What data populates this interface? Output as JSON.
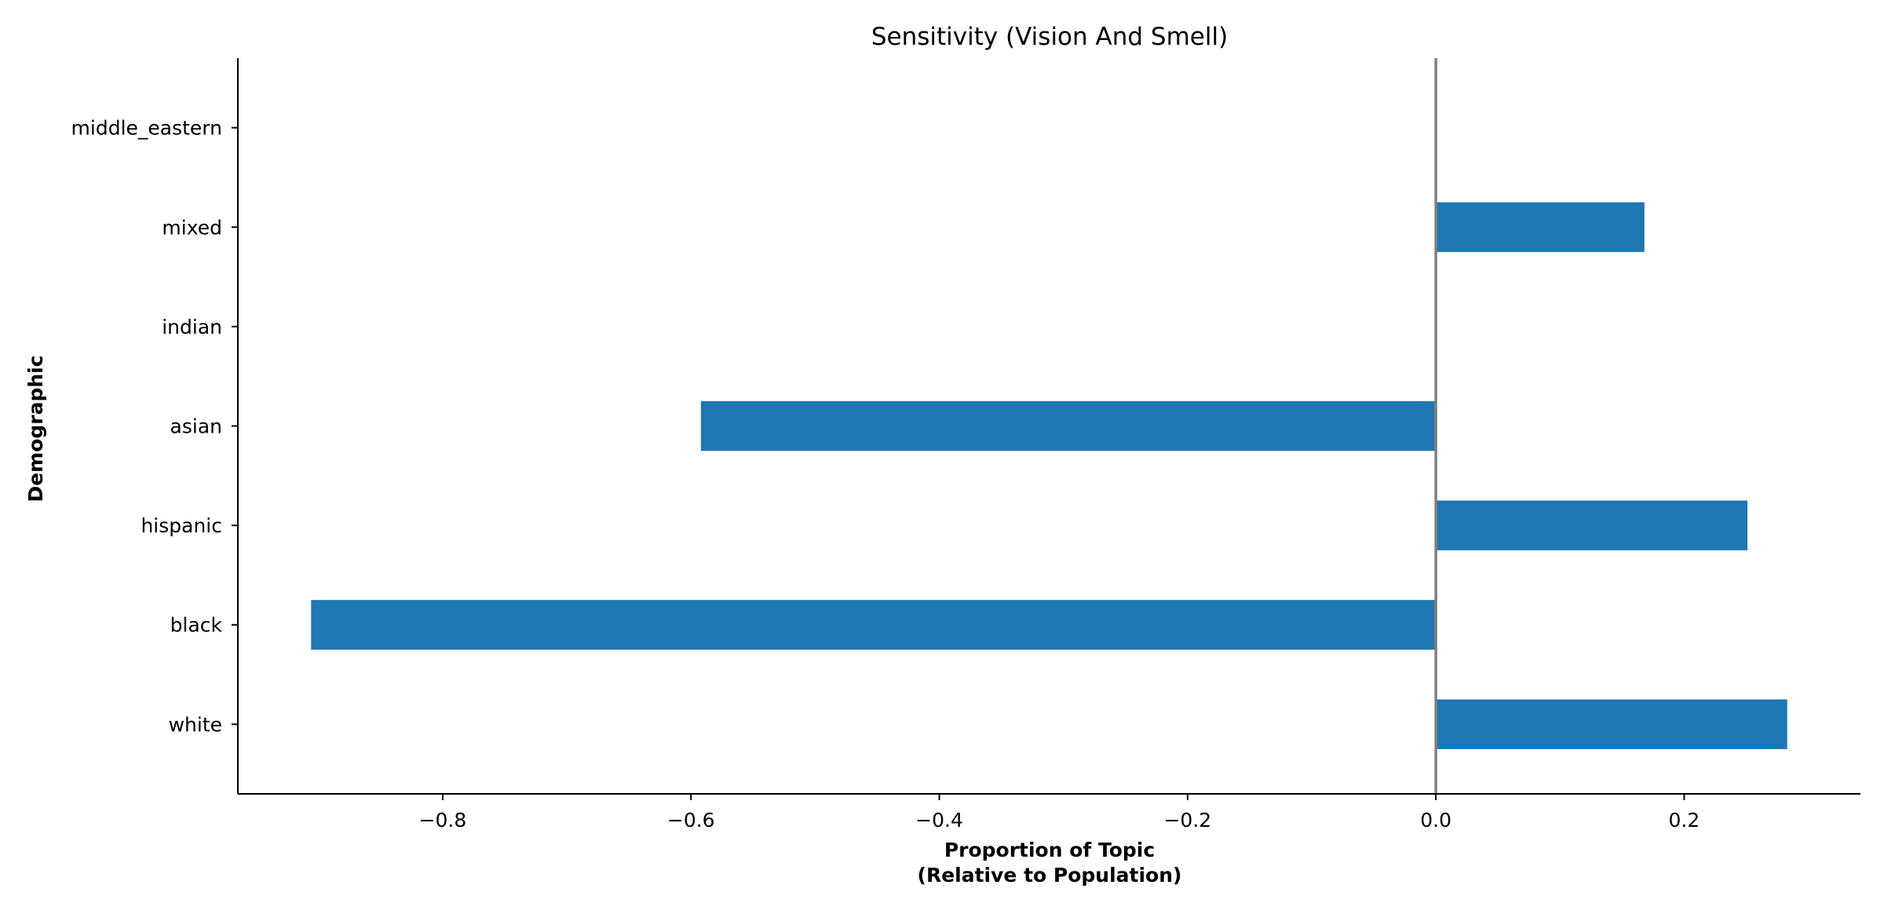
{
  "chart_data": {
    "type": "bar",
    "orientation": "horizontal",
    "title": "Sensitivity (Vision And Smell)",
    "xlabel_lines": [
      "Proportion of Topic",
      "(Relative to Population)"
    ],
    "ylabel": "Demographic",
    "categories": [
      "white",
      "black",
      "hispanic",
      "asian",
      "indian",
      "mixed",
      "middle_eastern"
    ],
    "values": [
      0.283,
      -0.906,
      0.251,
      -0.592,
      0,
      0.168,
      0
    ],
    "xlim": [
      -0.965,
      0.342
    ],
    "xticks": [
      -0.8,
      -0.6,
      -0.4,
      -0.2,
      0.0,
      0.2
    ],
    "xtick_labels": [
      "−0.8",
      "−0.6",
      "−0.4",
      "−0.2",
      "0.0",
      "0.2"
    ],
    "zero_line": true,
    "grid": false,
    "bar_color": "#1f77b4",
    "zero_line_color": "#808080"
  }
}
